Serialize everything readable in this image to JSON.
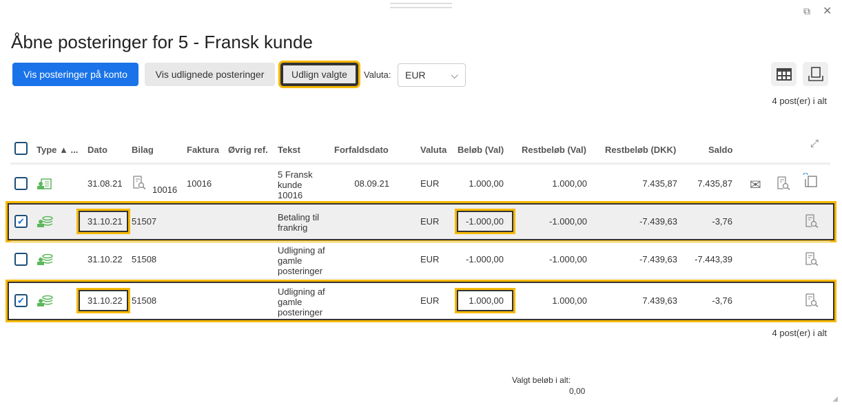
{
  "title": "Åbne posteringer for 5 - Fransk kunde",
  "toolbar": {
    "show_on_account": "Vis posteringer på konto",
    "show_settled": "Vis udlignede posteringer",
    "settle_selected": "Udlign valgte",
    "currency_label": "Valuta:",
    "currency_value": "EUR"
  },
  "count_top": "4 post(er) i alt",
  "count_bottom": "4 post(er) i alt",
  "columns": [
    "Type ▲ ...",
    "Dato",
    "Bilag",
    "Faktura",
    "Øvrig ref.",
    "Tekst",
    "Forfaldsdato",
    "Valuta",
    "Beløb (Val)",
    "Restbeløb (Val)",
    "Restbeløb (DKK)",
    "Saldo"
  ],
  "rows": [
    {
      "checked": false,
      "type": "invoice",
      "dato": "31.08.21",
      "bilag": "10016",
      "faktura": "10016",
      "tekst": "5 Fransk kunde 10016",
      "forfald": "08.09.21",
      "valuta": "EUR",
      "belob": "1.000,00",
      "rest_val": "1.000,00",
      "rest_dkk": "7.435,87",
      "saldo": "7.435,87"
    },
    {
      "checked": true,
      "type": "payment",
      "dato": "31.10.21",
      "bilag": "51507",
      "faktura": "",
      "tekst": "Betaling til frankrig",
      "forfald": "",
      "valuta": "EUR",
      "belob": "-1.000,00",
      "rest_val": "-1.000,00",
      "rest_dkk": "-7.439,63",
      "saldo": "-3,76"
    },
    {
      "checked": false,
      "type": "payment",
      "dato": "31.10.22",
      "bilag": "51508",
      "faktura": "",
      "tekst": "Udligning af gamle posteringer",
      "forfald": "",
      "valuta": "EUR",
      "belob": "-1.000,00",
      "rest_val": "-1.000,00",
      "rest_dkk": "-7.439,63",
      "saldo": "-7.443,39"
    },
    {
      "checked": true,
      "type": "payment",
      "dato": "31.10.22",
      "bilag": "51508",
      "faktura": "",
      "tekst": "Udligning af gamle posteringer",
      "forfald": "",
      "valuta": "EUR",
      "belob": "1.000,00",
      "rest_val": "1.000,00",
      "rest_dkk": "7.439,63",
      "saldo": "-3,76"
    }
  ],
  "footer": {
    "selected_label": "Valgt beløb i alt:",
    "selected_value": "0,00"
  },
  "colors": {
    "primary": "#1a73e8",
    "highlight": "#f5b800",
    "type_icon": "#5cb85c"
  }
}
